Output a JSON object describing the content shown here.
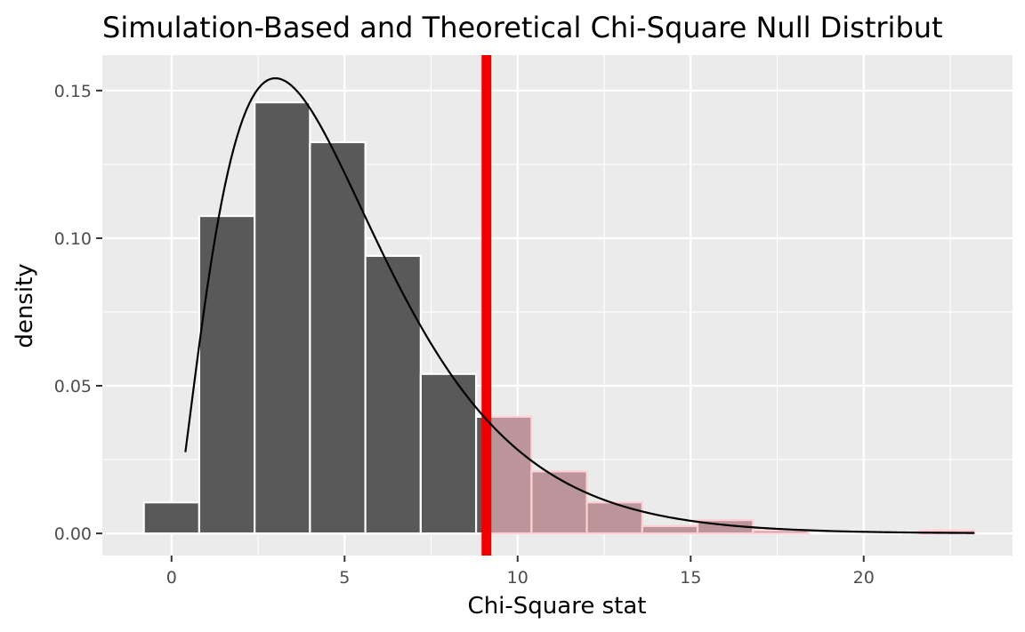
{
  "chart_data": {
    "type": "bar",
    "title": "Simulation-Based and Theoretical Chi-Square Null Distribut",
    "xlabel": "Chi-Square stat",
    "ylabel": "density",
    "xlim": [
      -2.0,
      24.3
    ],
    "ylim": [
      -0.0075,
      0.162
    ],
    "x_ticks": [
      0,
      5,
      10,
      15,
      20
    ],
    "x_tick_labels": [
      "0",
      "5",
      "10",
      "15",
      "20"
    ],
    "y_ticks": [
      0.0,
      0.05,
      0.1,
      0.15
    ],
    "y_tick_labels": [
      "0.00",
      "0.05",
      "0.10",
      "0.15"
    ],
    "grid": true,
    "bins": [
      {
        "x0": -0.8,
        "x1": 0.8,
        "density": 0.0105,
        "shaded": false
      },
      {
        "x0": 0.8,
        "x1": 2.4,
        "density": 0.1075,
        "shaded": false
      },
      {
        "x0": 2.4,
        "x1": 4.0,
        "density": 0.146,
        "shaded": false
      },
      {
        "x0": 4.0,
        "x1": 5.6,
        "density": 0.1325,
        "shaded": false
      },
      {
        "x0": 5.6,
        "x1": 7.2,
        "density": 0.094,
        "shaded": false
      },
      {
        "x0": 7.2,
        "x1": 8.8,
        "density": 0.054,
        "shaded": false
      },
      {
        "x0": 8.8,
        "x1": 9.2,
        "density": 0.0395,
        "shaded": false
      },
      {
        "x0": 9.2,
        "x1": 10.4,
        "density": 0.0395,
        "shaded": true
      },
      {
        "x0": 10.4,
        "x1": 12.0,
        "density": 0.021,
        "shaded": true
      },
      {
        "x0": 12.0,
        "x1": 13.6,
        "density": 0.0105,
        "shaded": true
      },
      {
        "x0": 13.6,
        "x1": 15.2,
        "density": 0.0025,
        "shaded": true
      },
      {
        "x0": 15.2,
        "x1": 16.8,
        "density": 0.0045,
        "shaded": true
      },
      {
        "x0": 16.8,
        "x1": 18.4,
        "density": 0.001,
        "shaded": true
      },
      {
        "x0": 21.6,
        "x1": 23.2,
        "density": 0.001,
        "shaded": true
      }
    ],
    "theoretical_curve": {
      "distribution": "chi-square",
      "df": 5,
      "x_from": 0.4,
      "x_to": 23.2
    },
    "observed_stat": 9.1,
    "colors": {
      "panel": "#ebebeb",
      "grid": "#ffffff",
      "bar_fill": "#595959",
      "bar_outline": "#ffffff",
      "shaded_fill": "#bc959b",
      "shaded_outline": "#ffd0d6",
      "curve": "#000000",
      "observed_line": "#ee0000",
      "tick_label": "#4d4d4d",
      "tick_mark": "#333333"
    }
  }
}
